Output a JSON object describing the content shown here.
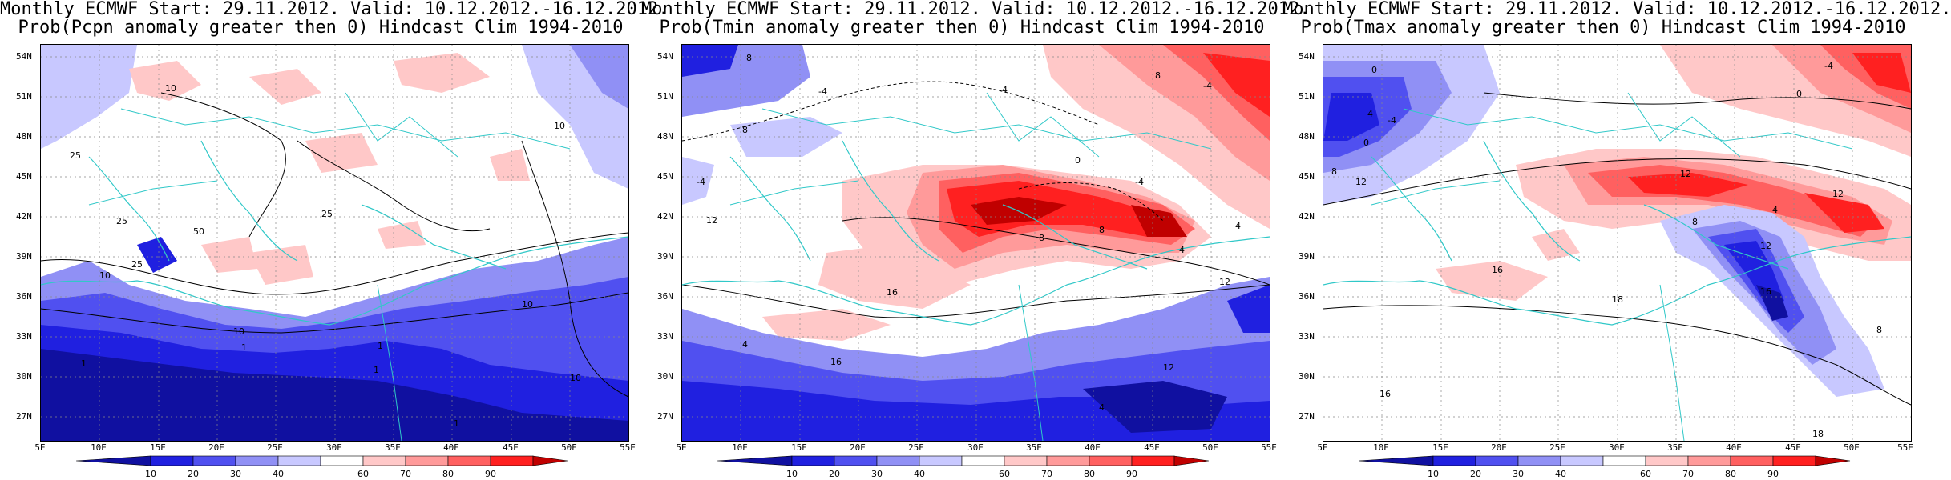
{
  "lat_ticks": [
    "54N",
    "51N",
    "48N",
    "45N",
    "42N",
    "39N",
    "36N",
    "33N",
    "30N",
    "27N"
  ],
  "lon_ticks": [
    "5E",
    "10E",
    "15E",
    "20E",
    "25E",
    "30E",
    "35E",
    "40E",
    "45E",
    "50E",
    "55E"
  ],
  "colorbar_ticks": [
    "10",
    "20",
    "30",
    "40",
    "60",
    "70",
    "80",
    "90"
  ],
  "colorbar_colors": [
    "#1010a0",
    "#2020e0",
    "#5050f0",
    "#9090f5",
    "#c8c8ff",
    "#ffffff",
    "#ffc8c8",
    "#ff9a9a",
    "#ff6060",
    "#ff2020",
    "#c00000"
  ],
  "panels": [
    {
      "title_line1": "Monthly ECMWF Start: 29.11.2012. Valid: 10.12.2012.-16.12.2012.",
      "title_line2": "Prob(Pcpn anomaly greater then 0) Hindcast Clim 1994-2010",
      "contour_labels": [
        "10",
        "25",
        "25",
        "50",
        "25",
        "25",
        "10",
        "10",
        "1",
        "1",
        "10",
        "1",
        "10",
        "1",
        "10",
        "1"
      ]
    },
    {
      "title_line1": "Monthly ECMWF Start: 29.11.2012. Valid: 10.12.2012.-16.12.2012.",
      "title_line2": "Prob(Tmin anomaly greater then 0) Hindcast Clim 1994-2010",
      "contour_labels": [
        "8",
        "-4",
        "-4",
        "8",
        "-4",
        "8",
        "0",
        "-4",
        "-4",
        "12",
        "16",
        "8",
        "4",
        "12",
        "8",
        "16",
        "4",
        "4",
        "12",
        "4"
      ]
    },
    {
      "title_line1": "Monthly ECMWF Start: 29.11.2012. Valid: 10.12.2012.-16.12.2012.",
      "title_line2": "Prob(Tmax anomaly greater then 0) Hindcast Clim 1994-2010",
      "contour_labels": [
        "-4",
        "0",
        "0",
        "4",
        "-4",
        "0",
        "8",
        "12",
        "12",
        "4",
        "8",
        "12",
        "12",
        "16",
        "18",
        "16",
        "8",
        "18",
        "16"
      ]
    }
  ]
}
